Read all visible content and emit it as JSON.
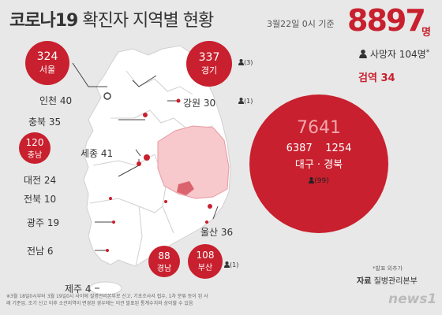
{
  "title": {
    "main": "코로나19",
    "rest": " 확진자 지역별 현황"
  },
  "date": "3월22일 0시 기준",
  "total": {
    "value": "8897",
    "unit": "명"
  },
  "deaths": "사망자 104명",
  "deaths_mark": "*",
  "tests": "검역 34",
  "regions": {
    "seoul": {
      "name": "서울",
      "count": "324"
    },
    "gyeonggi": {
      "name": "경기",
      "count": "337",
      "deaths": "(3)"
    },
    "incheon": {
      "name": "인천",
      "count": "40"
    },
    "gangwon": {
      "name": "강원",
      "count": "30",
      "deaths": "(1)"
    },
    "chungbuk": {
      "name": "충북",
      "count": "35"
    },
    "chungnam": {
      "name": "충남",
      "count": "120"
    },
    "sejong": {
      "name": "세종",
      "count": "41"
    },
    "daejeon": {
      "name": "대전",
      "count": "24"
    },
    "jeonbuk": {
      "name": "전북",
      "count": "10"
    },
    "gwangju": {
      "name": "광주",
      "count": "19"
    },
    "jeonnam": {
      "name": "전남",
      "count": "6"
    },
    "jeju": {
      "name": "제주",
      "count": "4"
    },
    "gyeongnam": {
      "name": "경남",
      "count": "88"
    },
    "busan": {
      "name": "부산",
      "count": "108",
      "deaths": "(1)"
    },
    "ulsan": {
      "name": "울산",
      "count": "36"
    },
    "daegu_gyeongbuk": {
      "total": "7641",
      "daegu": "6387",
      "gyeongbuk": "1254",
      "name": "대구 · 경북",
      "deaths": "(99)"
    }
  },
  "note": "*발표 외추가",
  "source_label": "자료",
  "source": "질병관리본부",
  "footnote": "※3월 18일0시부터 3월 19일0시 사이에 질병관리본부로 신고, 기초조사서 접수, 1차 분류 등이 된 사례 기준임. 조기 신고 이후 소관지역이 변경된 경우에는 이관 발표된 통계수치와 상이할 수 있음",
  "logo": "news1",
  "colors": {
    "accent": "#c8202e",
    "map": "#ffffff",
    "daegu_area": "#f7c8cc"
  }
}
